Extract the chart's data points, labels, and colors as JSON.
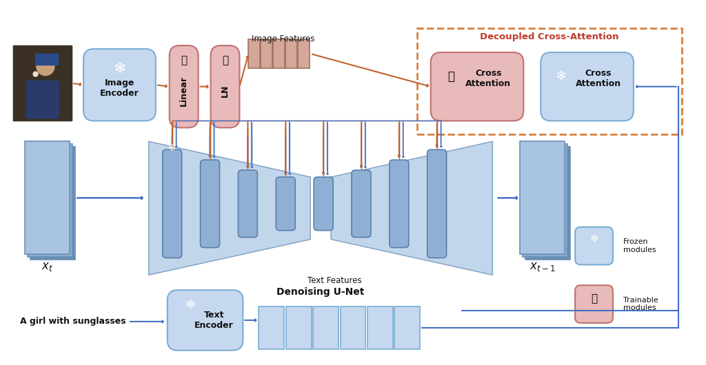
{
  "bg_color": "#ffffff",
  "title": "",
  "frozen_color": "#c5d8f0",
  "trainable_color": "#e8baba",
  "frozen_border": "#7aadd4",
  "trainable_border": "#c07070",
  "arrow_blue": "#4472c4",
  "arrow_orange": "#c0622a",
  "unet_bg": "#b8cfe8",
  "unet_col": "#8fafd4",
  "feature_fill": "#d4a898",
  "feature_border": "#a07060",
  "dashed_border": "#d48040",
  "text_color_dark": "#111111",
  "red_label": "#c0392b",
  "image_features_label": "Image Features",
  "text_features_label": "Text Features",
  "denoising_label": "Denoising U-Net",
  "decoupled_label": "Decoupled Cross-Attention",
  "xt_label": "$x_t$",
  "xt1_label": "$x_{t-1}$",
  "text_prompt": "A girl with sunglasses",
  "frozen_legend": "Frozen\nmodules",
  "trainable_legend": "Trainable\nmodules"
}
